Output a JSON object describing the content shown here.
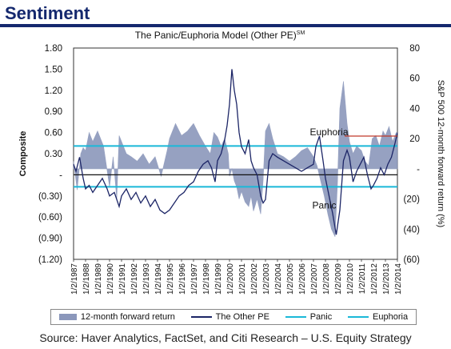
{
  "header": {
    "title": "Sentiment"
  },
  "footer": {
    "source": "Source: Haver Analytics, FactSet, and Citi Research – U.S. Equity Strategy"
  },
  "colors": {
    "accent": "#14286e",
    "area": "#8b97bb",
    "line": "#1c2566",
    "threshold": "#1ab8d8",
    "marker": "#c0392b"
  },
  "chart_data": {
    "type": "area",
    "title": "The Panic/Euphoria Model (Other PE)",
    "title_superscript": "SM",
    "ylabel": "Composite",
    "y2label": "S&P 500 12-month forward return (%)",
    "ylim": [
      -1.2,
      1.8
    ],
    "y2lim": [
      -60,
      80
    ],
    "yticks": [
      "1.80",
      "1.50",
      "1.20",
      "0.90",
      "0.60",
      "0.30",
      "-",
      "(0.30)",
      "(0.60)",
      "(0.90)",
      "(1.20)"
    ],
    "y2ticks": [
      "80",
      "60",
      "40",
      "20",
      "-",
      "(20)",
      "(40)",
      "(60)"
    ],
    "xticks": [
      "1/2/1987",
      "1/2/1988",
      "1/2/1989",
      "1/2/1990",
      "1/2/1991",
      "1/2/1992",
      "1/2/1993",
      "1/2/1994",
      "1/2/1995",
      "1/2/1996",
      "1/2/1997",
      "1/2/1998",
      "1/2/1999",
      "1/2/2000",
      "1/2/2001",
      "1/2/2002",
      "1/2/2003",
      "1/2/2004",
      "1/2/2005",
      "1/2/2006",
      "1/2/2007",
      "1/2/2008",
      "1/2/2009",
      "1/2/2010",
      "1/2/2011",
      "1/2/2012",
      "1/2/2013",
      "1/2/2014"
    ],
    "thresholds": {
      "panic": -0.17,
      "euphoria": 0.41
    },
    "annotations": [
      {
        "text": "Euphoria",
        "x": 2008.3,
        "y": 0.56
      },
      {
        "text": "Panic",
        "x": 2007.9,
        "y": -0.48
      }
    ],
    "series": [
      {
        "name": "12-month forward return",
        "axis": "secondary",
        "x": [
          1987.0,
          1987.3,
          1987.6,
          1987.8,
          1988.0,
          1988.3,
          1988.6,
          1989.0,
          1989.5,
          1990.0,
          1990.3,
          1990.6,
          1990.8,
          1991.0,
          1991.4,
          1991.8,
          1992.3,
          1992.8,
          1993.3,
          1993.8,
          1994.3,
          1994.8,
          1995.0,
          1995.5,
          1996.0,
          1996.5,
          1997.0,
          1997.5,
          1998.0,
          1998.4,
          1998.7,
          1999.0,
          1999.3,
          1999.6,
          1999.9,
          2000.0,
          2000.2,
          2000.4,
          2000.6,
          2000.8,
          2001.0,
          2001.3,
          2001.6,
          2001.8,
          2002.0,
          2002.3,
          2002.6,
          2002.8,
          2003.0,
          2003.3,
          2003.6,
          2004.0,
          2004.5,
          2005.0,
          2005.5,
          2006.0,
          2006.5,
          2007.0,
          2007.3,
          2007.6,
          2007.9,
          2008.2,
          2008.5,
          2008.8,
          2009.0,
          2009.2,
          2009.5,
          2009.8,
          2010.0,
          2010.3,
          2010.6,
          2011.0,
          2011.3,
          2011.6,
          2011.9,
          2012.2,
          2012.5,
          2012.8,
          2013.0,
          2013.3,
          2013.6,
          2013.9,
          2014.0
        ],
        "values": [
          5,
          -14,
          10,
          14,
          12,
          24,
          18,
          25,
          15,
          -12,
          8,
          -20,
          22,
          18,
          10,
          8,
          5,
          10,
          3,
          8,
          -5,
          12,
          20,
          30,
          22,
          25,
          30,
          22,
          15,
          10,
          24,
          21,
          15,
          20,
          10,
          -5,
          0,
          -8,
          -12,
          -20,
          -15,
          -22,
          -25,
          -18,
          -28,
          -20,
          -30,
          -8,
          25,
          30,
          20,
          10,
          8,
          5,
          8,
          12,
          14,
          8,
          2,
          -8,
          -18,
          -30,
          -40,
          -45,
          -10,
          40,
          58,
          30,
          18,
          10,
          15,
          12,
          5,
          2,
          20,
          22,
          15,
          25,
          22,
          28,
          18,
          24,
          20
        ]
      },
      {
        "name": "The Other PE",
        "axis": "primary",
        "x": [
          1987.0,
          1987.2,
          1987.5,
          1987.8,
          1988.0,
          1988.3,
          1988.6,
          1989.0,
          1989.4,
          1989.8,
          1990.0,
          1990.4,
          1990.8,
          1991.0,
          1991.4,
          1991.8,
          1992.2,
          1992.6,
          1993.0,
          1993.4,
          1993.8,
          1994.2,
          1994.6,
          1995.0,
          1995.4,
          1995.8,
          1996.2,
          1996.6,
          1997.0,
          1997.4,
          1997.8,
          1998.2,
          1998.5,
          1998.8,
          1999.0,
          1999.3,
          1999.6,
          1999.8,
          2000.0,
          2000.2,
          2000.4,
          2000.6,
          2000.8,
          2001.0,
          2001.3,
          2001.6,
          2001.8,
          2002.0,
          2002.3,
          2002.6,
          2002.8,
          2003.0,
          2003.3,
          2003.6,
          2004.0,
          2004.5,
          2005.0,
          2005.5,
          2006.0,
          2006.5,
          2007.0,
          2007.2,
          2007.5,
          2007.8,
          2008.0,
          2008.3,
          2008.6,
          2008.9,
          2009.2,
          2009.5,
          2009.8,
          2010.0,
          2010.3,
          2010.6,
          2010.9,
          2011.2,
          2011.5,
          2011.8,
          2012.0,
          2012.3,
          2012.6,
          2012.9,
          2013.2,
          2013.5,
          2013.8,
          2014.0
        ],
        "values": [
          0.15,
          0.05,
          0.25,
          -0.05,
          -0.2,
          -0.15,
          -0.25,
          -0.15,
          -0.05,
          -0.2,
          -0.3,
          -0.25,
          -0.45,
          -0.3,
          -0.2,
          -0.35,
          -0.25,
          -0.4,
          -0.3,
          -0.45,
          -0.35,
          -0.5,
          -0.55,
          -0.5,
          -0.4,
          -0.3,
          -0.25,
          -0.15,
          -0.1,
          0.05,
          0.15,
          0.2,
          0.1,
          -0.1,
          0.2,
          0.3,
          0.5,
          0.7,
          1.0,
          1.5,
          1.2,
          1.0,
          0.6,
          0.4,
          0.3,
          0.5,
          0.2,
          0.1,
          0.0,
          -0.3,
          -0.4,
          -0.35,
          0.2,
          0.3,
          0.25,
          0.2,
          0.15,
          0.1,
          0.05,
          0.1,
          0.15,
          0.4,
          0.55,
          0.2,
          -0.05,
          -0.3,
          -0.55,
          -0.85,
          -0.5,
          0.2,
          0.35,
          0.25,
          -0.1,
          0.05,
          0.15,
          0.25,
          0.0,
          -0.2,
          -0.15,
          -0.05,
          0.1,
          0.0,
          0.15,
          0.25,
          0.45,
          0.6
        ]
      },
      {
        "name": "Panic"
      },
      {
        "name": "Euphoria"
      }
    ]
  }
}
